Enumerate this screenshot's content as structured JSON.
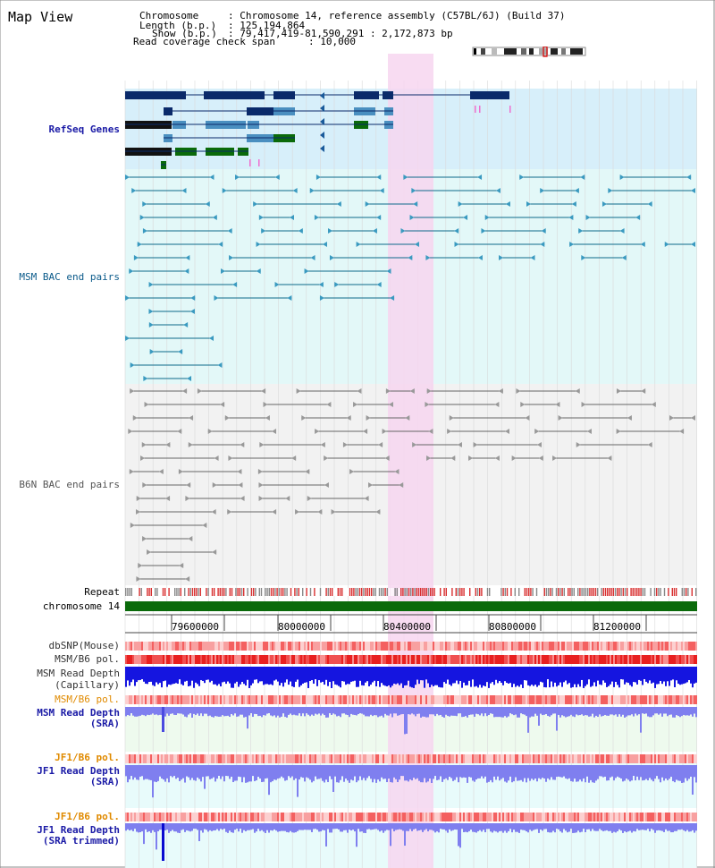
{
  "view": {
    "title": "Map View",
    "header": {
      "chromosome_label": "Chromosome",
      "chromosome_value": ": Chromosome 14, reference assembly (C57BL/6J) (Build 37)",
      "length_label": "Length (b.p.)",
      "length_value": ": 125,194,864",
      "show_label": "Show (b.p.)",
      "show_value": ": 79,417,419-81,590,291 : 2,172,873 bp",
      "coverage_label": "Read coverage check span",
      "coverage_value": ": 10,000"
    }
  },
  "tracks": {
    "refseq": "RefSeq Genes",
    "msm_bac": "MSM BAC end pairs",
    "b6n_bac": "B6N BAC end pairs",
    "repeat": "Repeat",
    "chromosome": "chromosome 14",
    "dbsnp": "dbSNP(Mouse)",
    "msm_b6_pol": "MSM/B6 pol.",
    "msm_read_depth": "MSM Read Depth",
    "capillary": "(Capillary)",
    "msm_b6_pol2": "MSM/B6 pol.",
    "msm_read_depth_sra": "MSM Read Depth",
    "sra": "(SRA)",
    "jf1_b6_pol": "JF1/B6 pol.",
    "jf1_read_depth": "JF1 Read Depth",
    "sra2": "(SRA)",
    "jf1_b6_pol2": "JF1/B6 pol.",
    "jf1_read_depth_trim": "JF1 Read Depth",
    "sra_trimmed": "(SRA trimmed)"
  },
  "axis": {
    "ticks": [
      "79600000",
      "80000000",
      "80400000",
      "80800000",
      "81200000"
    ]
  },
  "colors": {
    "highlight": "#f7d6f0",
    "refseq_bg": "#d7effa",
    "msm_bg": "#e3f8f8",
    "b6n_bg": "#f2f2f2",
    "chromosome": "#0a6a0a",
    "depth_blue": "#1515e0",
    "depth_light": "#7f7fef"
  }
}
